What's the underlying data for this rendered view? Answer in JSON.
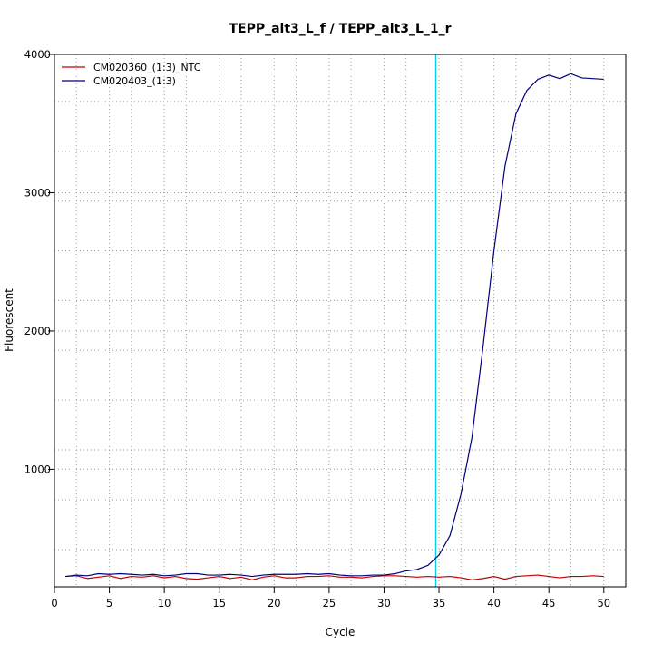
{
  "chart_data": {
    "type": "line",
    "title": "TEPP_alt3_L_f / TEPP_alt3_L_1_r",
    "xlabel": "Cycle",
    "ylabel": "Fluorescent",
    "xlim": [
      0,
      52
    ],
    "ylim": [
      150,
      4000
    ],
    "x_ticks": [
      0,
      5,
      10,
      15,
      20,
      25,
      30,
      35,
      40,
      45,
      50
    ],
    "y_ticks": [
      1000,
      2000,
      3000,
      4000
    ],
    "x_minor_grid": [
      2,
      7,
      12,
      17,
      22,
      27,
      32,
      37,
      42,
      47,
      52
    ],
    "y_minor_grid": [
      420,
      780,
      1140,
      1500,
      1860,
      2220,
      2580,
      2940,
      3300,
      3660
    ],
    "grid": true,
    "legend_position": "top-left",
    "threshold_x": 34.7,
    "threshold_color": "#00d0e8",
    "x": [
      1,
      2,
      3,
      4,
      5,
      6,
      7,
      8,
      9,
      10,
      11,
      12,
      13,
      14,
      15,
      16,
      17,
      18,
      19,
      20,
      21,
      22,
      23,
      24,
      25,
      26,
      27,
      28,
      29,
      30,
      31,
      32,
      33,
      34,
      35,
      36,
      37,
      38,
      39,
      40,
      41,
      42,
      43,
      44,
      45,
      46,
      47,
      48,
      49,
      50
    ],
    "series": [
      {
        "name": "CM020360_(1:3)_NTC",
        "color": "#c00000",
        "values": [
          225,
          230,
          210,
          220,
          230,
          210,
          225,
          220,
          230,
          215,
          225,
          210,
          205,
          215,
          225,
          210,
          220,
          200,
          220,
          230,
          215,
          215,
          225,
          225,
          230,
          220,
          220,
          215,
          225,
          230,
          230,
          225,
          220,
          225,
          220,
          225,
          215,
          200,
          210,
          225,
          205,
          225,
          230,
          235,
          225,
          215,
          225,
          225,
          230,
          225
        ]
      },
      {
        "name": "CM020403_(1:3)",
        "color": "#00007a",
        "values": [
          225,
          235,
          230,
          245,
          240,
          245,
          240,
          235,
          240,
          230,
          235,
          245,
          245,
          235,
          235,
          240,
          235,
          225,
          235,
          240,
          240,
          240,
          245,
          240,
          245,
          235,
          230,
          230,
          235,
          235,
          245,
          265,
          275,
          305,
          380,
          520,
          820,
          1230,
          1880,
          2580,
          3190,
          3570,
          3740,
          3820,
          3850,
          3825,
          3860,
          3830,
          3825,
          3820
        ]
      }
    ]
  }
}
